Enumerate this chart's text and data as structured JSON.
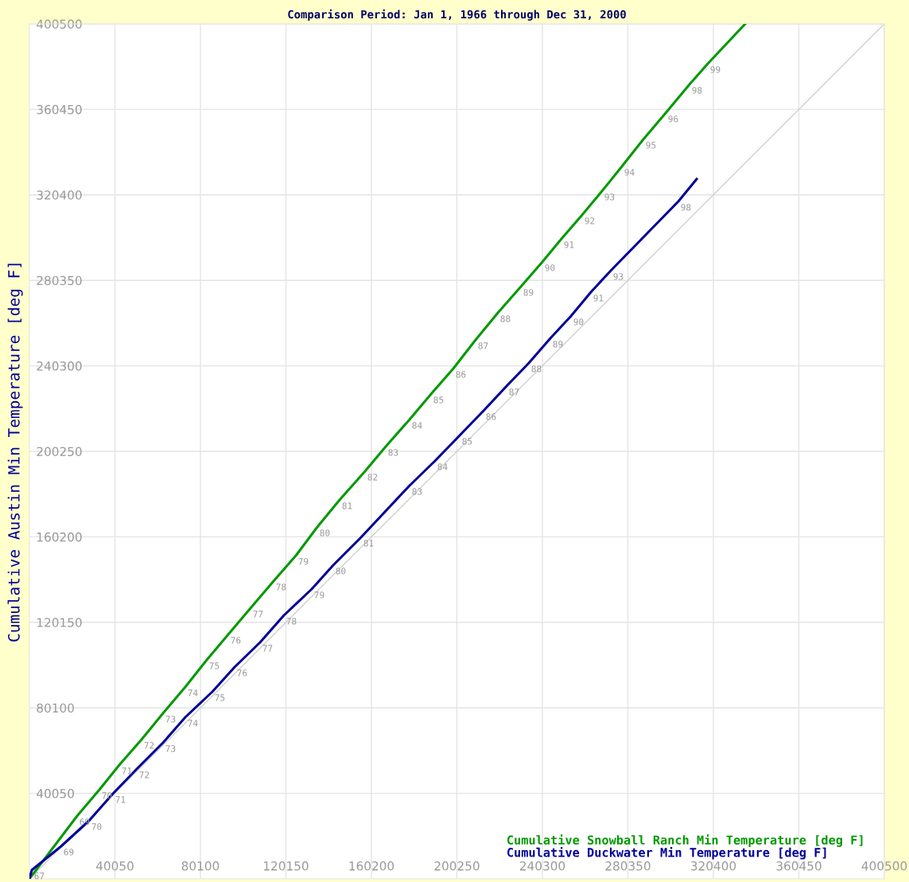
{
  "chart_data": {
    "type": "line",
    "title": "Comparison Period: Jan 1, 1966 through Dec 31, 2000",
    "ylabel": "Cumulative Austin Min Temperature [deg F]",
    "xlim": [
      0,
      400500
    ],
    "ylim": [
      0,
      400500
    ],
    "xticks": [
      40050,
      80100,
      120150,
      160200,
      200250,
      240300,
      280350,
      320400,
      360450,
      400500
    ],
    "yticks": [
      40050,
      80100,
      120150,
      160200,
      200250,
      240300,
      280350,
      320400,
      360450,
      400500
    ],
    "grid": true,
    "legend": "bottom right",
    "marker": "none",
    "line_style": "solid",
    "series": [
      {
        "type": "line",
        "color": "#d0d0d0",
        "x": [
          0,
          400500
        ],
        "values": [
          0,
          400500
        ]
      },
      {
        "name": "Cumulative Snowball Ranch Min Temperature [deg F]",
        "color": "#009900",
        "x": [
          0,
          22354,
          32785,
          42099,
          52531,
          62590,
          73022,
          83081,
          93140,
          103572,
          114376,
          124808,
          134867,
          145298,
          157220,
          166907,
          178084,
          188143,
          198574,
          209006,
          219438,
          230242,
          240301,
          249243,
          258929,
          268243,
          277557,
          287616,
          298048,
          309225,
          317794,
          335304
        ],
        "values": [
          0,
          29459,
          41765,
          53325,
          65258,
          77563,
          89869,
          102548,
          114480,
          126786,
          139465,
          151397,
          164822,
          177500,
          190925,
          202485,
          215163,
          227096,
          239029,
          252453,
          265132,
          277438,
          288998,
          299812,
          311000,
          322186,
          333746,
          346424,
          358730,
          372154,
          381850,
          400500
        ]
      },
      {
        "name": "Cumulative Duckwater Min Temperature [deg F]",
        "color": "#000099",
        "x": [
          0,
          1118,
          14902,
          27942,
          39119,
          50296,
          62590,
          73022,
          85689,
          96120,
          108042,
          119219,
          132259,
          142318,
          155358,
          178084,
          190006,
          201555,
          212732,
          223536,
          233968,
          244027,
          253713,
          263027,
          272341,
          304009,
          312578
        ],
        "values": [
          0,
          4102,
          15289,
          27222,
          39900,
          51460,
          63766,
          75699,
          87632,
          99191,
          110751,
          123430,
          135736,
          146923,
          159974,
          184213,
          195773,
          207705,
          219265,
          230825,
          241639,
          253199,
          263640,
          274827,
          284896,
          317338,
          327779
        ]
      }
    ],
    "annotations": [
      {
        "text": "69",
        "x": 22354,
        "y": 29459
      },
      {
        "text": "70",
        "x": 32785,
        "y": 41765
      },
      {
        "text": "71",
        "x": 42099,
        "y": 53325
      },
      {
        "text": "72",
        "x": 52531,
        "y": 65258
      },
      {
        "text": "73",
        "x": 62590,
        "y": 77563
      },
      {
        "text": "74",
        "x": 73022,
        "y": 89869
      },
      {
        "text": "75",
        "x": 83081,
        "y": 102548
      },
      {
        "text": "76",
        "x": 93140,
        "y": 114480
      },
      {
        "text": "77",
        "x": 103572,
        "y": 126786
      },
      {
        "text": "78",
        "x": 114376,
        "y": 139465
      },
      {
        "text": "79",
        "x": 124808,
        "y": 151397
      },
      {
        "text": "80",
        "x": 134867,
        "y": 164822
      },
      {
        "text": "81",
        "x": 145298,
        "y": 177500
      },
      {
        "text": "82",
        "x": 157220,
        "y": 190925
      },
      {
        "text": "83",
        "x": 166907,
        "y": 202485
      },
      {
        "text": "84",
        "x": 178084,
        "y": 215163
      },
      {
        "text": "85",
        "x": 188143,
        "y": 227096
      },
      {
        "text": "86",
        "x": 198574,
        "y": 239029
      },
      {
        "text": "87",
        "x": 209006,
        "y": 252453
      },
      {
        "text": "88",
        "x": 219438,
        "y": 265132
      },
      {
        "text": "89",
        "x": 230242,
        "y": 277438
      },
      {
        "text": "90",
        "x": 240301,
        "y": 288998
      },
      {
        "text": "91",
        "x": 249243,
        "y": 299812
      },
      {
        "text": "92",
        "x": 258929,
        "y": 311000
      },
      {
        "text": "93",
        "x": 268243,
        "y": 322186
      },
      {
        "text": "94",
        "x": 277557,
        "y": 333746
      },
      {
        "text": "95",
        "x": 287616,
        "y": 346424
      },
      {
        "text": "96",
        "x": 298048,
        "y": 358730
      },
      {
        "text": "98",
        "x": 309225,
        "y": 372154
      },
      {
        "text": "99",
        "x": 317794,
        "y": 381850
      },
      {
        "text": "67",
        "x": 1118,
        "y": 4102
      },
      {
        "text": "69",
        "x": 14902,
        "y": 15289
      },
      {
        "text": "70",
        "x": 27942,
        "y": 27222
      },
      {
        "text": "71",
        "x": 39119,
        "y": 39900
      },
      {
        "text": "72",
        "x": 50296,
        "y": 51460
      },
      {
        "text": "73",
        "x": 62590,
        "y": 63766
      },
      {
        "text": "74",
        "x": 73022,
        "y": 75699
      },
      {
        "text": "75",
        "x": 85689,
        "y": 87632
      },
      {
        "text": "76",
        "x": 96120,
        "y": 99191
      },
      {
        "text": "77",
        "x": 108042,
        "y": 110751
      },
      {
        "text": "78",
        "x": 119219,
        "y": 123430
      },
      {
        "text": "79",
        "x": 132259,
        "y": 135736
      },
      {
        "text": "80",
        "x": 142318,
        "y": 146923
      },
      {
        "text": "81",
        "x": 155358,
        "y": 159974
      },
      {
        "text": "83",
        "x": 178084,
        "y": 184213
      },
      {
        "text": "84",
        "x": 190006,
        "y": 195773
      },
      {
        "text": "85",
        "x": 201555,
        "y": 207705
      },
      {
        "text": "86",
        "x": 212732,
        "y": 219265
      },
      {
        "text": "87",
        "x": 223536,
        "y": 230825
      },
      {
        "text": "88",
        "x": 233968,
        "y": 241639
      },
      {
        "text": "89",
        "x": 244027,
        "y": 253199
      },
      {
        "text": "90",
        "x": 253713,
        "y": 263640
      },
      {
        "text": "91",
        "x": 263027,
        "y": 274827
      },
      {
        "text": "93",
        "x": 272341,
        "y": 284896
      },
      {
        "text": "98",
        "x": 304009,
        "y": 317338
      }
    ]
  }
}
